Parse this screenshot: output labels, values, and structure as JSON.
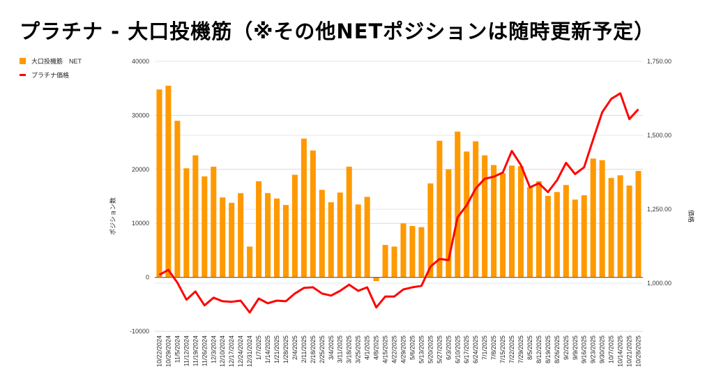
{
  "chart_data": {
    "type": "bar+line",
    "title": "プラチナ - 大口投機筋（※その他NETポジションは随時更新予定）",
    "legend_position": "top-left",
    "ylabel_left": "ポジション数",
    "ylabel_right": "価格",
    "ylim_left": [
      -10000,
      40000
    ],
    "ylim_right": [
      900,
      1750
    ],
    "yticks_left": [
      "40000",
      "30000",
      "20000",
      "10000",
      "0",
      "-10000"
    ],
    "yticks_left_values": [
      40000,
      30000,
      20000,
      10000,
      0,
      -10000
    ],
    "yticks_right": [
      "1,750.00",
      "1,500.00",
      "1,250.00",
      "1,000.00"
    ],
    "yticks_right_values": [
      1750,
      1500,
      1250,
      1000
    ],
    "grid": true,
    "colors": {
      "bar": "#ff9900",
      "line": "#ff0000"
    },
    "categories": [
      "10/22/2024",
      "10/29/2024",
      "11/5/2024",
      "11/12/2024",
      "11/19/2024",
      "11/26/2024",
      "12/3/2024",
      "12/10/2024",
      "12/17/2024",
      "12/24/2024",
      "12/31/2024",
      "1/7/2025",
      "1/14/2025",
      "1/21/2025",
      "1/28/2025",
      "2/4/2025",
      "2/11/2025",
      "2/18/2025",
      "2/25/2025",
      "3/4/2025",
      "3/11/2025",
      "3/18/2025",
      "3/25/2025",
      "4/1/2025",
      "4/8/2025",
      "4/15/2025",
      "4/22/2025",
      "4/29/2025",
      "5/6/2025",
      "5/13/2025",
      "5/20/2025",
      "5/27/2025",
      "6/3/2025",
      "6/10/2025",
      "6/17/2025",
      "6/24/2025",
      "7/1/2025",
      "7/8/2025",
      "7/15/2025",
      "7/22/2025",
      "7/29/2025",
      "8/5/2025",
      "8/12/2025",
      "8/19/2025",
      "8/26/2025",
      "9/2/2025",
      "9/9/2025",
      "9/16/2025",
      "9/23/2025",
      "9/30/2025",
      "10/7/2025",
      "10/14/2025",
      "10/21/2025",
      "10/28/2025"
    ],
    "series": [
      {
        "name": "大口投機筋　NET",
        "type": "bar",
        "axis": "left",
        "values": [
          34800,
          35500,
          29000,
          20200,
          22600,
          18700,
          20500,
          14800,
          13800,
          15600,
          5700,
          17800,
          15600,
          14600,
          13400,
          19000,
          25700,
          23500,
          16200,
          13900,
          15700,
          20500,
          13500,
          14900,
          -700,
          6000,
          5700,
          10000,
          9500,
          9300,
          17400,
          25300,
          20000,
          27000,
          23300,
          25200,
          22600,
          20800,
          19300,
          20700,
          20600,
          16700,
          17800,
          15100,
          15800,
          17100,
          14400,
          15200,
          22000,
          21700,
          18400,
          18900,
          17000,
          19700
        ]
      },
      {
        "name": "プラチナ価格",
        "type": "line",
        "axis": "right",
        "values": [
          1028,
          1045,
          1002,
          944,
          972,
          925,
          951,
          939,
          937,
          941,
          901,
          948,
          932,
          941,
          939,
          965,
          984,
          986,
          965,
          958,
          974,
          995,
          974,
          986,
          918,
          955,
          955,
          979,
          986,
          991,
          1056,
          1082,
          1078,
          1223,
          1263,
          1320,
          1353,
          1360,
          1374,
          1447,
          1400,
          1324,
          1338,
          1308,
          1348,
          1407,
          1369,
          1392,
          1486,
          1578,
          1623,
          1642,
          1555,
          1588
        ]
      }
    ]
  }
}
